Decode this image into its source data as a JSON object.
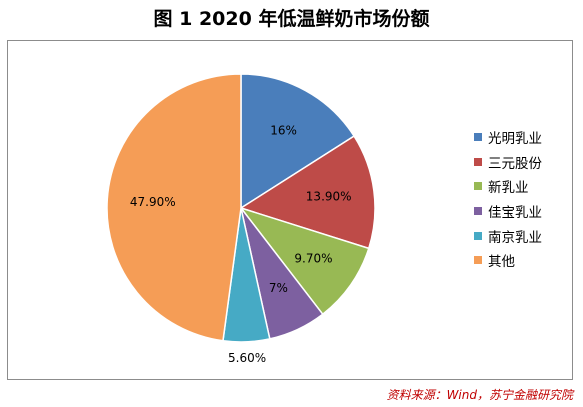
{
  "title": "图 1  2020 年低温鲜奶市场份额",
  "source": "资料来源：Wind，苏宁金融研究院",
  "chart_data": {
    "type": "pie",
    "title": "",
    "slices": [
      {
        "name": "光明乳业",
        "value": 16.0,
        "label": "16%",
        "color": "#4a7ebb"
      },
      {
        "name": "三元股份",
        "value": 13.9,
        "label": "13.90%",
        "color": "#be4b48"
      },
      {
        "name": "新乳业",
        "value": 9.7,
        "label": "9.70%",
        "color": "#98b954"
      },
      {
        "name": "佳宝乳业",
        "value": 7.0,
        "label": "7%",
        "color": "#7d60a0"
      },
      {
        "name": "南京乳业",
        "value": 5.6,
        "label": "5.60%",
        "color": "#46aac5"
      },
      {
        "name": "其他",
        "value": 47.9,
        "label": "47.90%",
        "color": "#f59d56"
      }
    ],
    "legend_position": "right"
  }
}
